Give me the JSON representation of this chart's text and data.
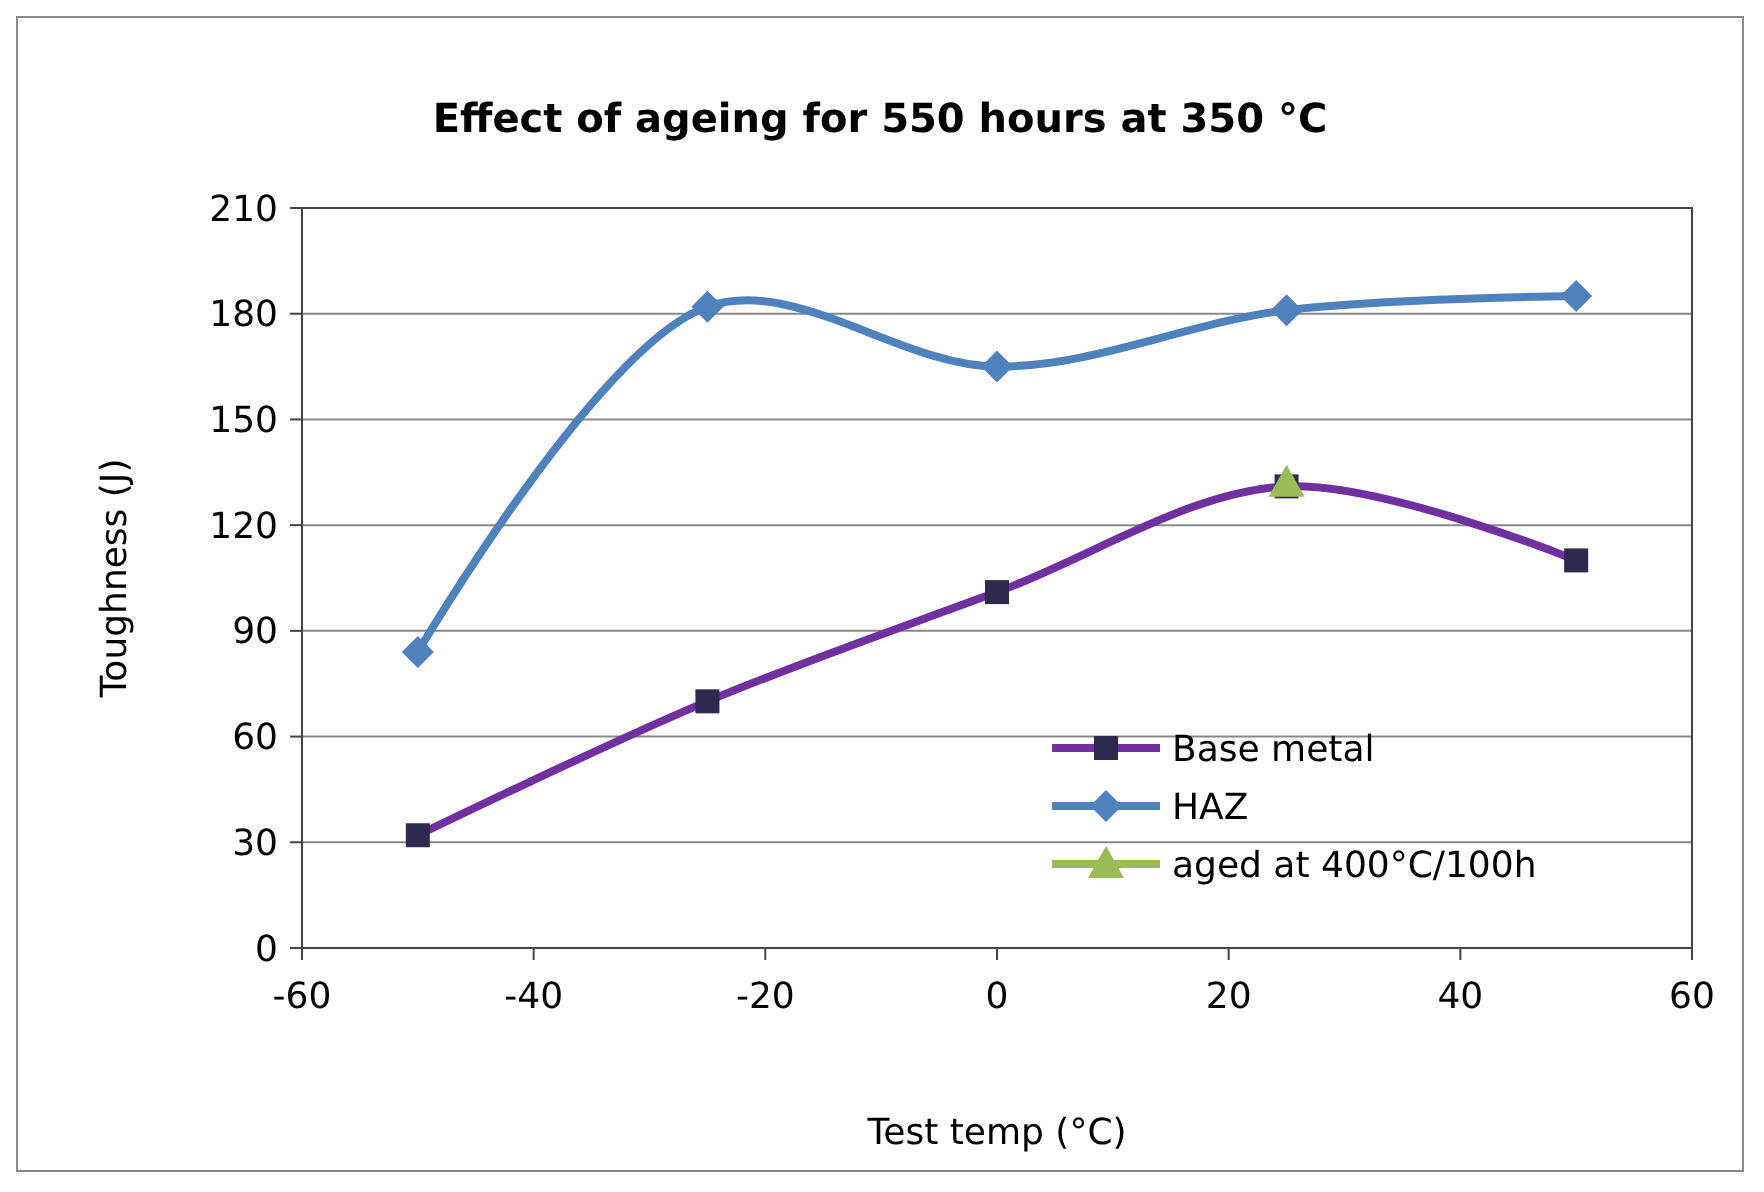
{
  "chart_data": {
    "type": "line",
    "title": "Effect of ageing for 550 hours at 350 °C",
    "xlabel": "Test temp (°C)",
    "ylabel": "Toughness (J)",
    "x": [
      -50,
      -25,
      0,
      25,
      50
    ],
    "series": [
      {
        "name": "Base metal",
        "color": "#7030a0",
        "marker": "square",
        "values": [
          32,
          70,
          101,
          131,
          110
        ]
      },
      {
        "name": "HAZ",
        "color": "#4f81bd",
        "marker": "diamond",
        "values": [
          84,
          182,
          165,
          181,
          185
        ]
      },
      {
        "name": "aged at 400°C/100h",
        "color": "#9bbb59",
        "marker": "triangle",
        "x": [
          25
        ],
        "values": [
          132
        ]
      }
    ],
    "xlim": [
      -60,
      60
    ],
    "xticks": [
      -60,
      -40,
      -20,
      0,
      20,
      40,
      60
    ],
    "ylim": [
      0,
      210
    ],
    "yticks": [
      0,
      30,
      60,
      90,
      120,
      150,
      180,
      210
    ],
    "grid": "y",
    "legend": "bottom right"
  }
}
